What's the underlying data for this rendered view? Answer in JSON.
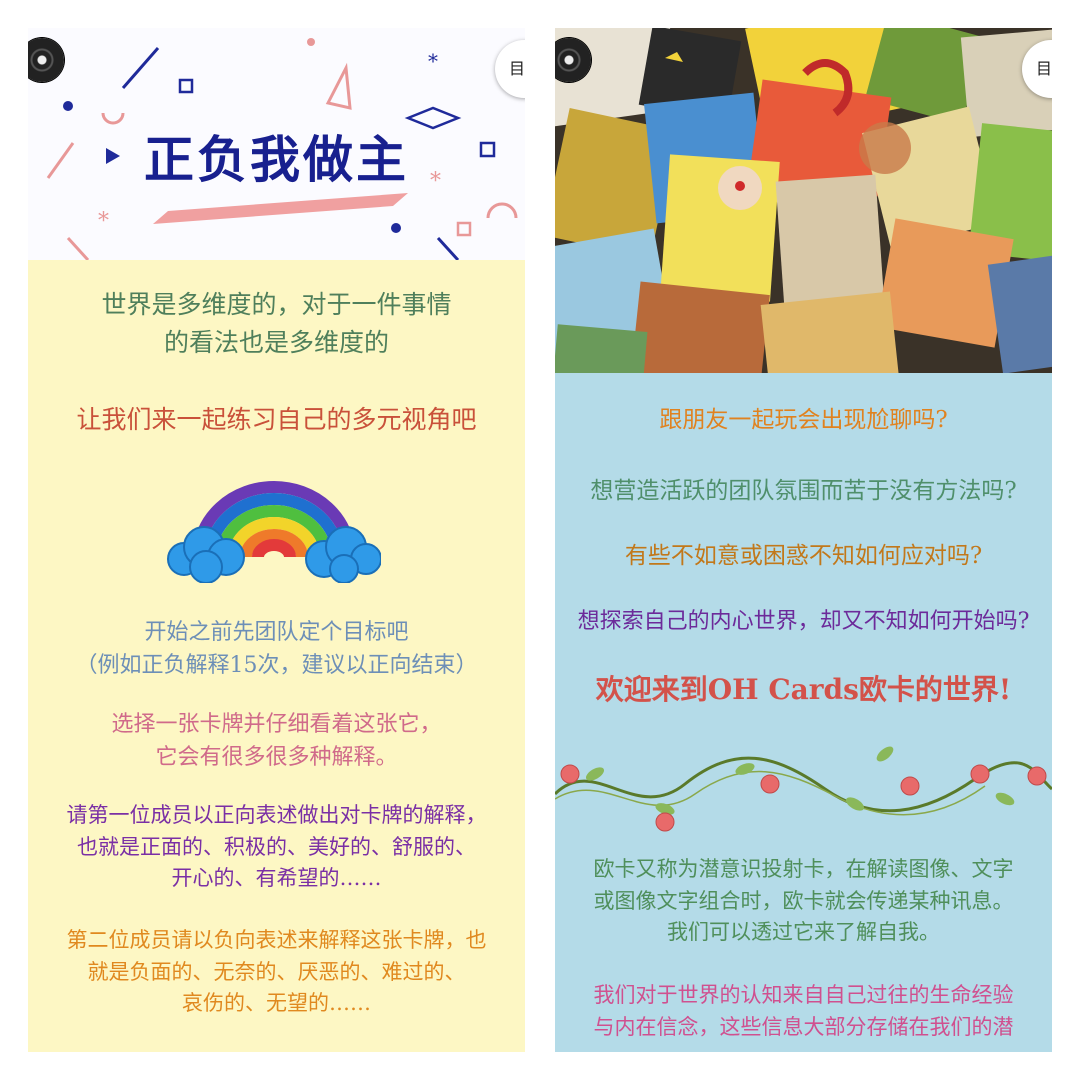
{
  "left_panel": {
    "banner_title": "正负我做主",
    "dir_button": "目录",
    "intro": {
      "line1": "世界是多维度的，对于一件事情",
      "line2": "的看法也是多维度的",
      "color": "#4f7f5b"
    },
    "headline": {
      "text": "让我们来一起练习自己的多元视角吧",
      "color": "#c9513a"
    },
    "goal": {
      "line1": "开始之前先团队定个目标吧",
      "line2": "（例如正负解释15次，建议以正向结束）",
      "color": "#6d8fb7"
    },
    "choose": {
      "line1": "选择一张卡牌并仔细看着这张它，",
      "line2": "它会有很多很多种解释。",
      "color": "#d06a8a"
    },
    "first": {
      "line1": "请第一位成员以正向表述做出对卡牌的解释，",
      "line2": "也就是正面的、积极的、美好的、舒服的、",
      "line3": "开心的、有希望的……",
      "color": "#7a2fa5"
    },
    "second": {
      "line1": "第二位成员请以负向表述来解释这张卡牌，也",
      "line2": "就是负面的、无奈的、厌恶的、难过的、",
      "line3": "哀伤的、无望的……",
      "color": "#e0891f"
    }
  },
  "right_panel": {
    "dir_button": "目录",
    "q1": {
      "text": "跟朋友一起玩会出现尬聊吗?",
      "color": "#e0821f"
    },
    "q2": {
      "text": "想营造活跃的团队氛围而苦于没有方法吗?",
      "color": "#4f8f6b"
    },
    "q3": {
      "text": "有些不如意或困惑不知如何应对吗?",
      "color": "#c2781a"
    },
    "q4": {
      "text": "想探索自己的内心世界，却又不知如何开始吗?",
      "color": "#6c2a9a"
    },
    "welcome": {
      "text": "欢迎来到OH Cards欧卡的世界!",
      "color": "#d3524a"
    },
    "desc": {
      "line1": "欧卡又称为潜意识投射卡，在解读图像、文字",
      "line2": "或图像文字组合时，欧卡就会传递某种讯息。",
      "line3": "我们可以透过它来了解自我。",
      "color": "#4f8f5b"
    },
    "cognition": {
      "line1": "我们对于世界的认知来自自己过往的生命经验",
      "line2": "与内在信念，这些信息大部分存储在我们的潜",
      "color": "#d0508f"
    }
  }
}
